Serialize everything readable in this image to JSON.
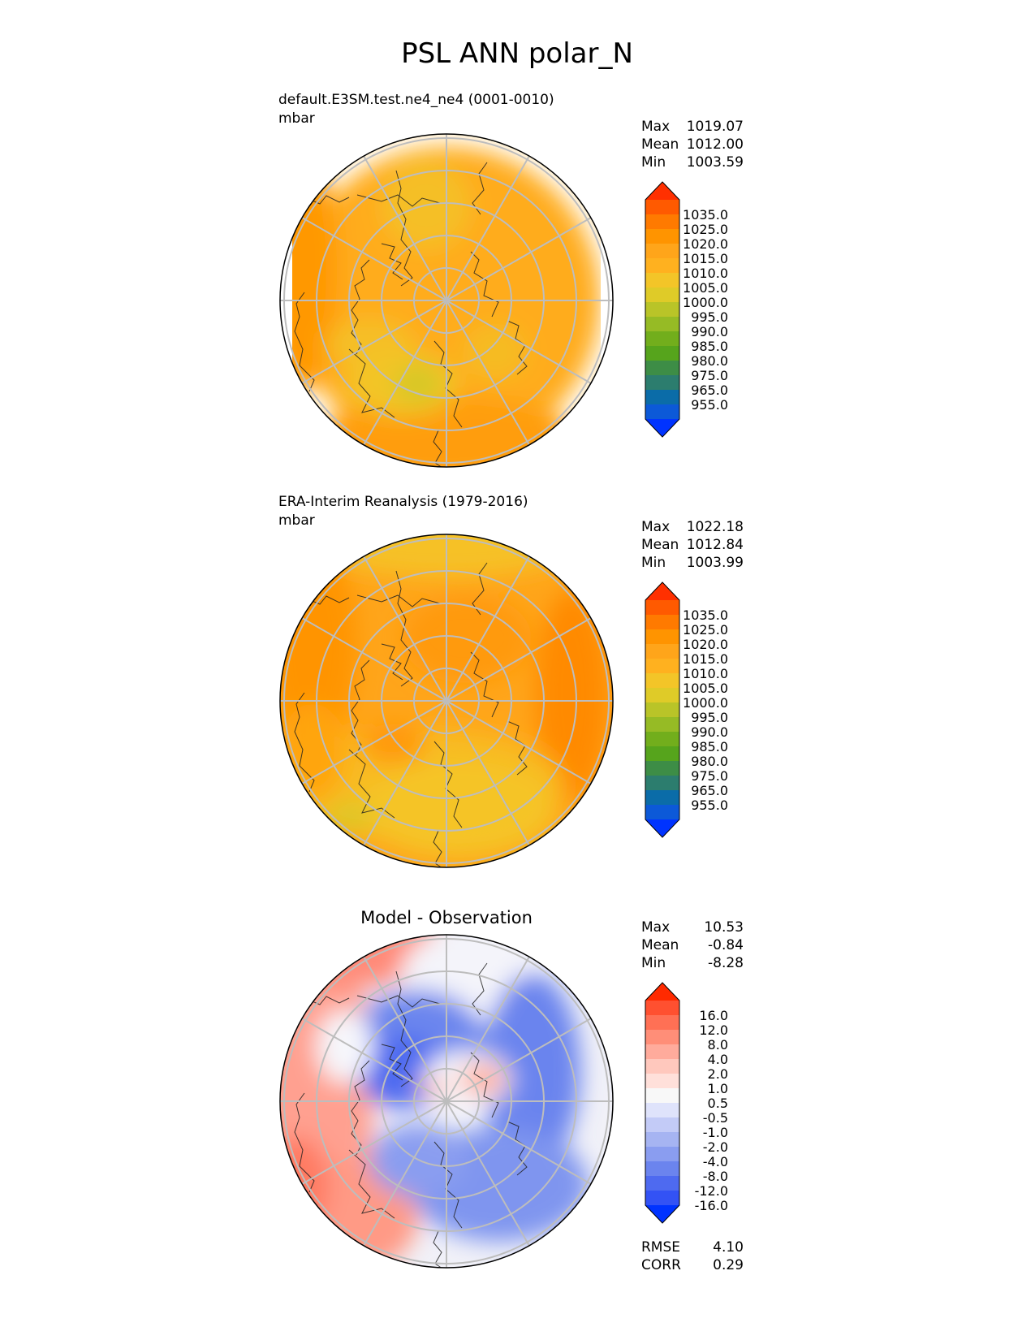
{
  "figure": {
    "title": "PSL ANN polar_N"
  },
  "chart_data": [
    {
      "type": "heatmap",
      "projection": "north-polar-stereographic",
      "title": "default.E3SM.test.ne4_ne4 (0001-0010)",
      "units": "mbar",
      "stats": [
        {
          "label": "Max",
          "value": "1019.07"
        },
        {
          "label": "Mean",
          "value": "1012.00"
        },
        {
          "label": "Min",
          "value": "1003.59"
        }
      ],
      "colorbar": {
        "labels": [
          "1035.0",
          "1025.0",
          "1020.0",
          "1015.0",
          "1010.0",
          "1005.0",
          "1000.0",
          "995.0",
          "990.0",
          "985.0",
          "980.0",
          "975.0",
          "965.0",
          "955.0"
        ],
        "colors": [
          "#ff3000",
          "#ff5a00",
          "#ff7a00",
          "#ff9400",
          "#ffa51a",
          "#ffb11f",
          "#f3c528",
          "#dfcb28",
          "#b9c428",
          "#96bb25",
          "#72ae1c",
          "#56a41c",
          "#3d8d46",
          "#2c7d6e",
          "#0b6ca8",
          "#0c59d8",
          "#0033ff"
        ],
        "extend": "both"
      },
      "field_range_mbar": [
        1003.59,
        1019.07
      ]
    },
    {
      "type": "heatmap",
      "projection": "north-polar-stereographic",
      "title": "ERA-Interim Reanalysis (1979-2016)",
      "units": "mbar",
      "stats": [
        {
          "label": "Max",
          "value": "1022.18"
        },
        {
          "label": "Mean",
          "value": "1012.84"
        },
        {
          "label": "Min",
          "value": "1003.99"
        }
      ],
      "colorbar": {
        "labels": [
          "1035.0",
          "1025.0",
          "1020.0",
          "1015.0",
          "1010.0",
          "1005.0",
          "1000.0",
          "995.0",
          "990.0",
          "985.0",
          "980.0",
          "975.0",
          "965.0",
          "955.0"
        ],
        "colors": [
          "#ff3000",
          "#ff5a00",
          "#ff7a00",
          "#ff9400",
          "#ffa51a",
          "#ffb11f",
          "#f3c528",
          "#dfcb28",
          "#b9c428",
          "#96bb25",
          "#72ae1c",
          "#56a41c",
          "#3d8d46",
          "#2c7d6e",
          "#0b6ca8",
          "#0c59d8",
          "#0033ff"
        ],
        "extend": "both"
      },
      "field_range_mbar": [
        1003.99,
        1022.18
      ]
    },
    {
      "type": "heatmap",
      "projection": "north-polar-stereographic",
      "title": "Model - Observation",
      "units": "",
      "stats": [
        {
          "label": "Max",
          "value": "10.53"
        },
        {
          "label": "Mean",
          "value": "-0.84"
        },
        {
          "label": "Min",
          "value": "-8.28"
        }
      ],
      "colorbar": {
        "labels": [
          "16.0",
          "12.0",
          "8.0",
          "4.0",
          "2.0",
          "1.0",
          "0.5",
          "-0.5",
          "-1.0",
          "-2.0",
          "-4.0",
          "-8.0",
          "-12.0",
          "-16.0"
        ],
        "colors": [
          "#ff2a00",
          "#ff5030",
          "#ff7055",
          "#ff8e78",
          "#ffab9c",
          "#ffc8bd",
          "#ffe0da",
          "#f8f8f8",
          "#dfe3fb",
          "#c3cbf7",
          "#a6b4f2",
          "#8a9df0",
          "#6b84ee",
          "#4e6af0",
          "#3352f5",
          "#0033ff"
        ],
        "extend": "both"
      },
      "field_range": [
        -8.28,
        10.53
      ],
      "metrics": [
        {
          "label": "RMSE",
          "value": "4.10"
        },
        {
          "label": "CORR",
          "value": "0.29"
        }
      ]
    }
  ]
}
